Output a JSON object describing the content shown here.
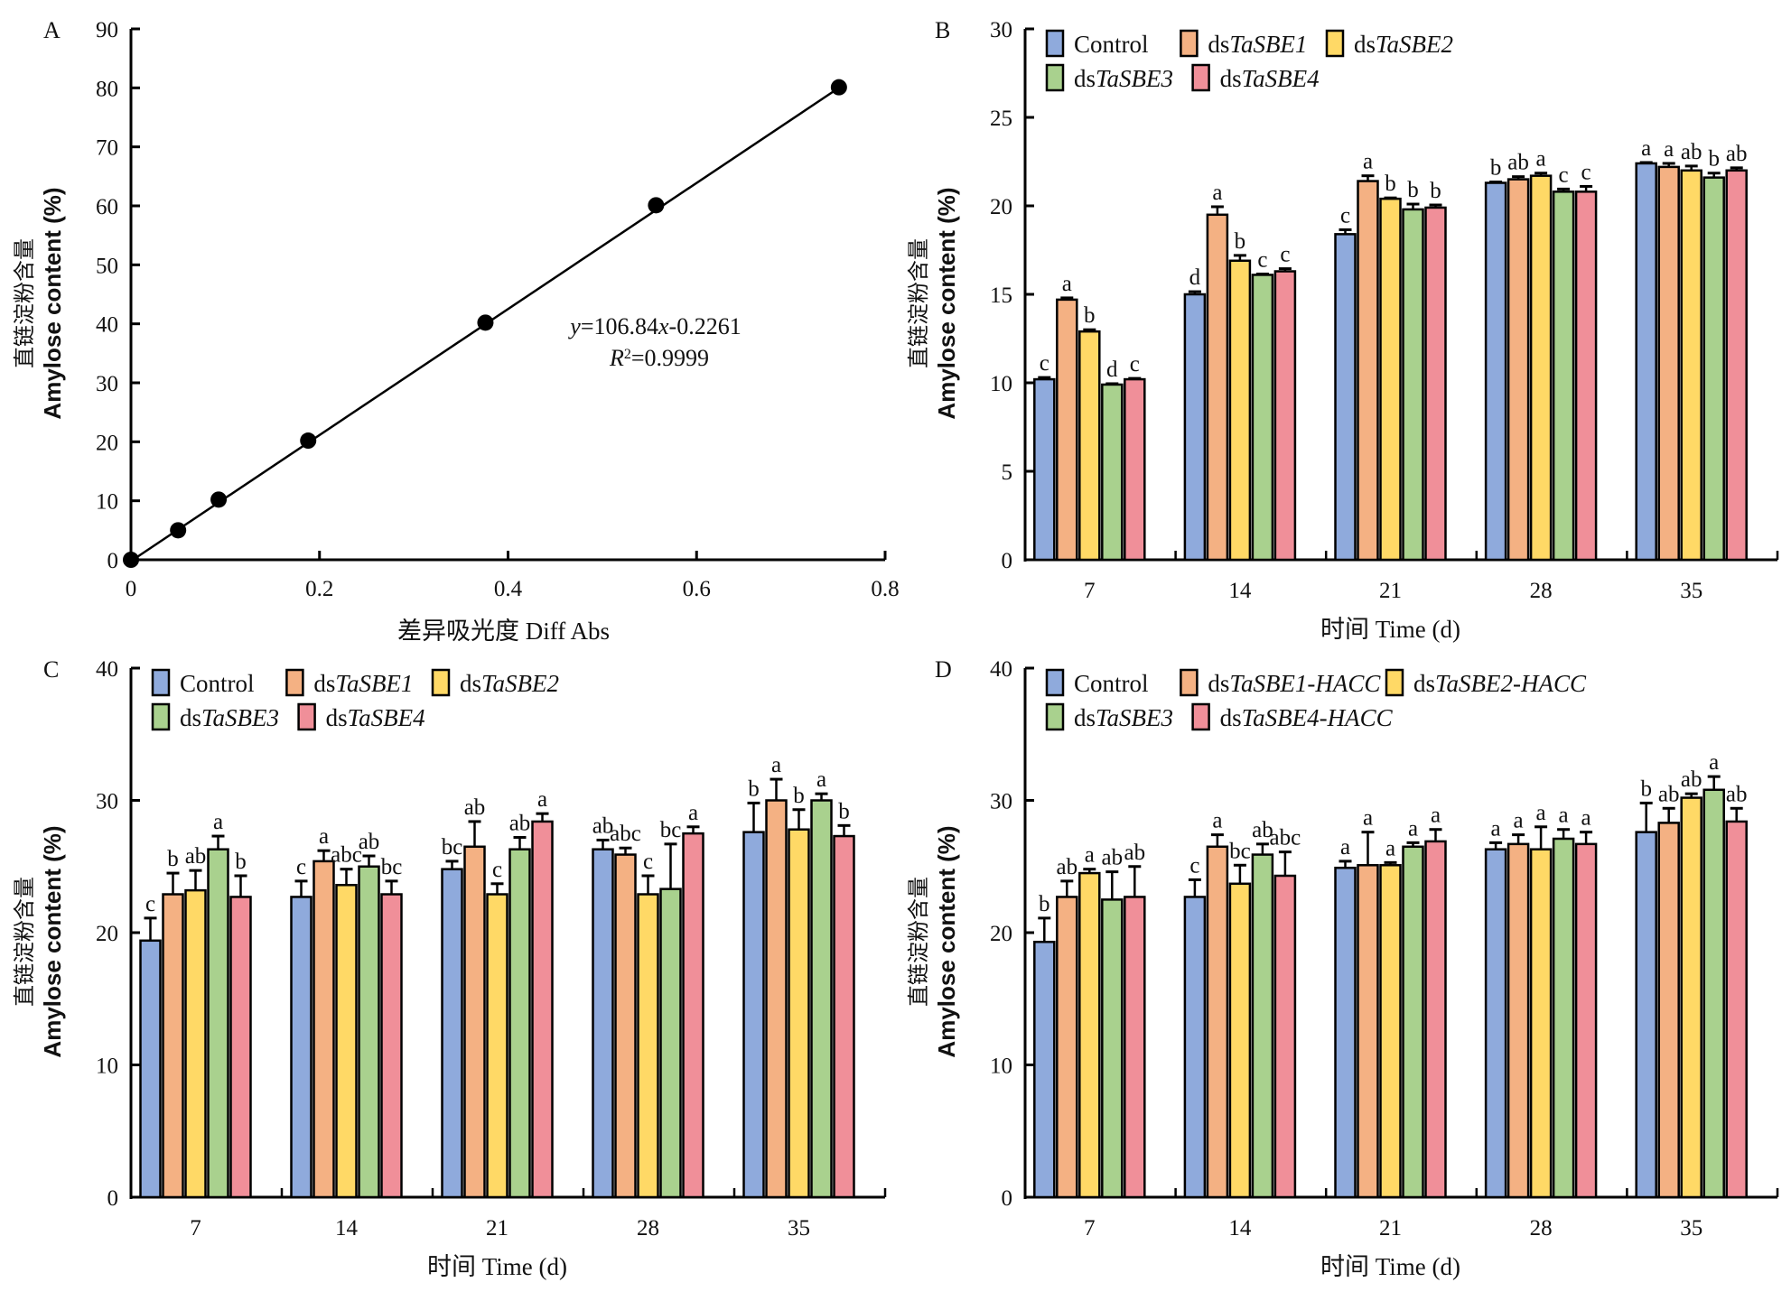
{
  "colors": {
    "Control": "#8FAADC",
    "ds1": "#F4B183",
    "ds2": "#FFD966",
    "ds3": "#A9D18E",
    "ds4": "#F08F99",
    "axis": "#000000"
  },
  "chart_data": [
    {
      "id": "A",
      "type": "scatter",
      "panel_label": "A",
      "title": "",
      "xlabel": "差异吸光度 Diff Abs",
      "ylabel_cn": "直链淀粉含量",
      "ylabel_en": "Amylose content (%)",
      "xlim": [
        0,
        0.8
      ],
      "ylim": [
        0,
        90
      ],
      "xticks": [
        "0",
        "0.2",
        "0.4",
        "0.6",
        "0.8"
      ],
      "yticks": [
        "0",
        "10",
        "20",
        "30",
        "40",
        "50",
        "60",
        "70",
        "80",
        "90"
      ],
      "points": [
        {
          "x": 0,
          "y": 0
        },
        {
          "x": 0.05,
          "y": 5
        },
        {
          "x": 0.093,
          "y": 10.2
        },
        {
          "x": 0.188,
          "y": 20.2
        },
        {
          "x": 0.376,
          "y": 40.2
        },
        {
          "x": 0.557,
          "y": 60.1
        },
        {
          "x": 0.751,
          "y": 80.1
        }
      ],
      "fit": {
        "slope": 106.84,
        "intercept": -0.2261,
        "x_range": [
          0,
          0.751
        ]
      },
      "annotation": {
        "equation_prefix": "y",
        "equation_mid": "=106.84",
        "equation_var": "x",
        "equation_suffix": "-0.2261",
        "r2_prefix": "R",
        "r2_sup": "2",
        "r2_suffix": "=0.9999"
      },
      "grid": false
    },
    {
      "id": "B",
      "type": "bar",
      "panel_label": "B",
      "xlabel": "时间 Time (d)",
      "ylabel_cn": "直链淀粉含量",
      "ylabel_en": "Amylose content (%)",
      "ylim": [
        0,
        30
      ],
      "yticks": [
        "0",
        "5",
        "10",
        "15",
        "20",
        "25",
        "30"
      ],
      "categories": [
        "7",
        "14",
        "21",
        "28",
        "35"
      ],
      "legend": [
        {
          "key": "Control",
          "plain": "Control",
          "italic": ""
        },
        {
          "key": "ds1",
          "plain": "ds",
          "italic": "TaSBE1"
        },
        {
          "key": "ds2",
          "plain": "ds",
          "italic": "TaSBE2"
        },
        {
          "key": "ds3",
          "plain": "ds",
          "italic": "TaSBE3"
        },
        {
          "key": "ds4",
          "plain": "ds",
          "italic": "TaSBE4"
        }
      ],
      "legend_position": "top-left",
      "series": [
        {
          "name": "Control",
          "key": "Control",
          "values": [
            10.2,
            15.0,
            18.4,
            21.3,
            22.4
          ],
          "errors": [
            0.1,
            0.15,
            0.25,
            0.05,
            0.05
          ],
          "letters": [
            "c",
            "d",
            "c",
            "b",
            "a"
          ]
        },
        {
          "name": "dsTaSBE1",
          "key": "ds1",
          "values": [
            14.7,
            19.5,
            21.4,
            21.5,
            22.2
          ],
          "errors": [
            0.1,
            0.45,
            0.3,
            0.15,
            0.2
          ],
          "letters": [
            "a",
            "a",
            "a",
            "ab",
            "a"
          ]
        },
        {
          "name": "dsTaSBE2",
          "key": "ds2",
          "values": [
            12.9,
            16.9,
            20.4,
            21.7,
            22.0
          ],
          "errors": [
            0.1,
            0.3,
            0.05,
            0.15,
            0.25
          ],
          "letters": [
            "b",
            "b",
            "b",
            "a",
            "ab"
          ]
        },
        {
          "name": "dsTaSBE3",
          "key": "ds3",
          "values": [
            9.9,
            16.1,
            19.8,
            20.8,
            21.6
          ],
          "errors": [
            0.05,
            0.05,
            0.3,
            0.15,
            0.25
          ],
          "letters": [
            "d",
            "c",
            "b",
            "c",
            "b"
          ]
        },
        {
          "name": "dsTaSBE4",
          "key": "ds4",
          "values": [
            10.2,
            16.3,
            19.9,
            20.8,
            22.0
          ],
          "errors": [
            0.05,
            0.15,
            0.15,
            0.3,
            0.15
          ],
          "letters": [
            "c",
            "c",
            "b",
            "c",
            "ab"
          ]
        }
      ],
      "grid": false
    },
    {
      "id": "C",
      "type": "bar",
      "panel_label": "C",
      "xlabel": "时间 Time (d)",
      "ylabel_cn": "直链淀粉含量",
      "ylabel_en": "Amylose content (%)",
      "ylim": [
        0,
        40
      ],
      "yticks": [
        "0",
        "10",
        "20",
        "30",
        "40"
      ],
      "categories": [
        "7",
        "14",
        "21",
        "28",
        "35"
      ],
      "legend": [
        {
          "key": "Control",
          "plain": "Control",
          "italic": ""
        },
        {
          "key": "ds1",
          "plain": "ds",
          "italic": "TaSBE1"
        },
        {
          "key": "ds2",
          "plain": "ds",
          "italic": "TaSBE2"
        },
        {
          "key": "ds3",
          "plain": "ds",
          "italic": "TaSBE3"
        },
        {
          "key": "ds4",
          "plain": "ds",
          "italic": "TaSBE4"
        }
      ],
      "legend_position": "top-left",
      "series": [
        {
          "name": "Control",
          "key": "Control",
          "values": [
            19.4,
            22.7,
            24.8,
            26.3,
            27.6
          ],
          "errors": [
            1.7,
            1.2,
            0.6,
            0.7,
            2.2
          ],
          "letters": [
            "c",
            "c",
            "bc",
            "ab",
            "b"
          ]
        },
        {
          "name": "dsTaSBE1",
          "key": "ds1",
          "values": [
            22.9,
            25.4,
            26.5,
            25.9,
            30.0
          ],
          "errors": [
            1.6,
            0.8,
            1.9,
            0.5,
            1.6
          ],
          "letters": [
            "b",
            "a",
            "ab",
            "abc",
            "a"
          ]
        },
        {
          "name": "dsTaSBE2",
          "key": "ds2",
          "values": [
            23.2,
            23.6,
            22.9,
            22.9,
            27.8
          ],
          "errors": [
            1.5,
            1.2,
            0.8,
            1.4,
            1.5
          ],
          "letters": [
            "ab",
            "abc",
            "c",
            "c",
            "b"
          ]
        },
        {
          "name": "dsTaSBE3",
          "key": "ds3",
          "values": [
            26.3,
            25.0,
            26.3,
            23.3,
            30.0
          ],
          "errors": [
            1.0,
            0.8,
            0.9,
            3.4,
            0.5
          ],
          "letters": [
            "a",
            "ab",
            "ab",
            "bc",
            "a"
          ]
        },
        {
          "name": "dsTaSBE4",
          "key": "ds4",
          "values": [
            22.7,
            22.9,
            28.4,
            27.5,
            27.3
          ],
          "errors": [
            1.6,
            1.0,
            0.6,
            0.5,
            0.8
          ],
          "letters": [
            "b",
            "bc",
            "a",
            "a",
            "b"
          ]
        }
      ],
      "grid": false
    },
    {
      "id": "D",
      "type": "bar",
      "panel_label": "D",
      "xlabel": "时间 Time (d)",
      "ylabel_cn": "直链淀粉含量",
      "ylabel_en": "Amylose content (%)",
      "ylim": [
        0,
        40
      ],
      "yticks": [
        "0",
        "10",
        "20",
        "30",
        "40"
      ],
      "categories": [
        "7",
        "14",
        "21",
        "28",
        "35"
      ],
      "legend": [
        {
          "key": "Control",
          "plain": "Control",
          "italic": ""
        },
        {
          "key": "ds1",
          "plain": "ds",
          "italic": "TaSBE1-HACC"
        },
        {
          "key": "ds2",
          "plain": "ds",
          "italic": "TaSBE2-HACC"
        },
        {
          "key": "ds3",
          "plain": "ds",
          "italic": "TaSBE3"
        },
        {
          "key": "ds4",
          "plain": "ds",
          "italic": "TaSBE4-HACC"
        }
      ],
      "legend_position": "top-left",
      "series": [
        {
          "name": "Control",
          "key": "Control",
          "values": [
            19.3,
            22.7,
            24.9,
            26.3,
            27.6
          ],
          "errors": [
            1.8,
            1.3,
            0.5,
            0.5,
            2.2
          ],
          "letters": [
            "b",
            "c",
            "a",
            "a",
            "b"
          ]
        },
        {
          "name": "dsTaSBE1-HACC",
          "key": "ds1",
          "values": [
            22.7,
            26.5,
            25.1,
            26.7,
            28.3
          ],
          "errors": [
            1.2,
            0.9,
            2.5,
            0.7,
            1.1
          ],
          "letters": [
            "ab",
            "a",
            "a",
            "a",
            "ab"
          ]
        },
        {
          "name": "dsTaSBE2-HACC",
          "key": "ds2",
          "values": [
            24.5,
            23.7,
            25.1,
            26.3,
            30.2
          ],
          "errors": [
            0.3,
            1.4,
            0.2,
            1.7,
            0.3
          ],
          "letters": [
            "a",
            "bc",
            "a",
            "a",
            "ab"
          ]
        },
        {
          "name": "dsTaSBE3",
          "key": "ds3",
          "values": [
            22.5,
            25.9,
            26.5,
            27.1,
            30.8
          ],
          "errors": [
            2.1,
            0.8,
            0.3,
            0.7,
            1.0
          ],
          "letters": [
            "ab",
            "ab",
            "a",
            "a",
            "a"
          ]
        },
        {
          "name": "dsTaSBE4-HACC",
          "key": "ds4",
          "values": [
            22.7,
            24.3,
            26.9,
            26.7,
            28.4
          ],
          "errors": [
            2.3,
            1.8,
            0.9,
            0.9,
            1.0
          ],
          "letters": [
            "ab",
            "abc",
            "a",
            "a",
            "ab"
          ]
        }
      ],
      "grid": false
    }
  ]
}
